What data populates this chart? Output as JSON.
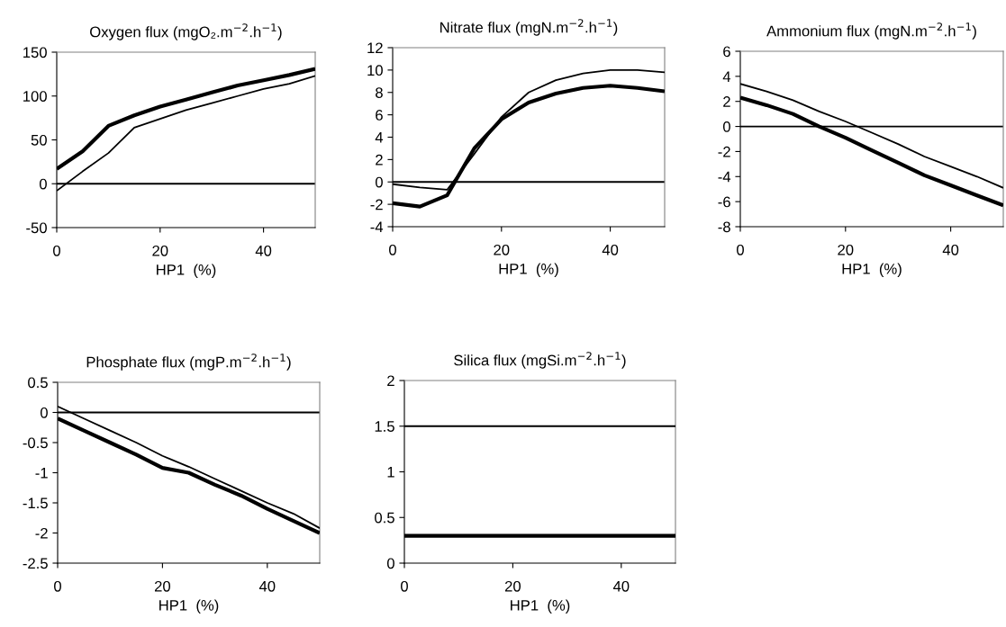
{
  "chart_data": [
    {
      "type": "line",
      "title": "Oxygen flux (mgO₂.m$^{−2}$.h$^{−1}$)",
      "xlabel": "HP1  (%)",
      "x": [
        0,
        5,
        10,
        15,
        20,
        25,
        30,
        35,
        40,
        45,
        50
      ],
      "xlim": [
        0,
        50
      ],
      "xticks": [
        0,
        20,
        40
      ],
      "ylim": [
        -50,
        150
      ],
      "yticks": [
        -50,
        0,
        50,
        100,
        150
      ],
      "series": [
        {
          "color": "#000000",
          "values": [
            17,
            37,
            66,
            78,
            88,
            96,
            104,
            112,
            118,
            124,
            131
          ]
        },
        {
          "color": "#000000",
          "values": [
            -8,
            14,
            35,
            64,
            74,
            84,
            92,
            100,
            108,
            114,
            123
          ]
        }
      ],
      "ref_lines": [
        {
          "axis": "y",
          "value": 0,
          "color": "#000000"
        }
      ]
    },
    {
      "type": "line",
      "title": "Nitrate flux (mgN.m$^{−2}$.h$^{−1}$)",
      "xlabel": "HP1  (%)",
      "x": [
        0,
        5,
        10,
        15,
        20,
        25,
        30,
        35,
        40,
        45,
        50
      ],
      "xlim": [
        0,
        50
      ],
      "xticks": [
        0,
        20,
        40
      ],
      "ylim": [
        -4,
        12
      ],
      "yticks": [
        -4,
        -2,
        0,
        2,
        4,
        6,
        8,
        10,
        12
      ],
      "series": [
        {
          "color": "#000000",
          "values": [
            -1.9,
            -2.2,
            -1.2,
            3.0,
            5.6,
            7.1,
            7.9,
            8.4,
            8.6,
            8.4,
            8.1
          ]
        },
        {
          "color": "#000000",
          "values": [
            -0.2,
            -0.5,
            -0.7,
            2.5,
            5.8,
            8.0,
            9.1,
            9.7,
            10.0,
            10.0,
            9.8
          ]
        }
      ],
      "ref_lines": [
        {
          "axis": "y",
          "value": 0,
          "color": "#000000"
        }
      ]
    },
    {
      "type": "line",
      "title": "Ammonium flux (mgN.m$^{−2}$.h$^{−1}$)",
      "xlabel": "HP1  (%)",
      "x": [
        0,
        5,
        10,
        15,
        20,
        25,
        30,
        35,
        40,
        45,
        50
      ],
      "xlim": [
        0,
        50
      ],
      "xticks": [
        0,
        20,
        40
      ],
      "ylim": [
        -8,
        6
      ],
      "yticks": [
        -8,
        -6,
        -4,
        -2,
        0,
        2,
        4,
        6
      ],
      "series": [
        {
          "color": "#000000",
          "values": [
            2.3,
            1.7,
            1.0,
            0,
            -0.9,
            -1.9,
            -2.9,
            -3.9,
            -4.7,
            -5.5,
            -6.3
          ]
        },
        {
          "color": "#000000",
          "values": [
            3.4,
            2.8,
            2.1,
            1.2,
            0.4,
            -0.5,
            -1.4,
            -2.4,
            -3.2,
            -4.0,
            -4.9
          ]
        }
      ],
      "ref_lines": [
        {
          "axis": "y",
          "value": 0,
          "color": "#000000"
        }
      ]
    },
    {
      "type": "line",
      "title": "Phosphate flux (mgP.m$^{−2}$.h$^{−1}$)",
      "xlabel": "HP1  (%)",
      "x": [
        0,
        5,
        10,
        15,
        20,
        25,
        30,
        35,
        40,
        45,
        50
      ],
      "xlim": [
        0,
        50
      ],
      "xticks": [
        0,
        20,
        40
      ],
      "ylim": [
        -2.5,
        0.5
      ],
      "yticks": [
        -2.5,
        -2,
        -1.5,
        -1,
        -0.5,
        0,
        0.5
      ],
      "series": [
        {
          "color": "#000000",
          "values": [
            -0.1,
            -0.3,
            -0.5,
            -0.7,
            -0.92,
            -1.0,
            -1.2,
            -1.38,
            -1.6,
            -1.8,
            -2.0
          ]
        },
        {
          "color": "#000000",
          "values": [
            0.1,
            -0.1,
            -0.3,
            -0.5,
            -0.72,
            -0.9,
            -1.1,
            -1.3,
            -1.5,
            -1.68,
            -1.92
          ]
        }
      ],
      "ref_lines": [
        {
          "axis": "y",
          "value": 0,
          "color": "#000000"
        }
      ]
    },
    {
      "type": "line",
      "title": "Silica flux (mgSi.m$^{−2}$.h$^{−1}$)",
      "xlabel": "HP1  (%)",
      "x": [
        0,
        5,
        10,
        15,
        20,
        25,
        30,
        35,
        40,
        45,
        50
      ],
      "xlim": [
        0,
        50
      ],
      "xticks": [
        0,
        20,
        40
      ],
      "ylim": [
        0,
        2
      ],
      "yticks": [
        0,
        0.5,
        1,
        1.5,
        2
      ],
      "series": [
        {
          "color": "#000000",
          "values": [
            0.3,
            0.3,
            0.3,
            0.3,
            0.3,
            0.3,
            0.3,
            0.3,
            0.3,
            0.3,
            0.3
          ]
        },
        {
          "color": "#000000",
          "values": [
            1.5,
            1.5,
            1.5,
            1.5,
            1.5,
            1.5,
            1.5,
            1.5,
            1.5,
            1.5,
            1.5
          ]
        }
      ]
    }
  ]
}
